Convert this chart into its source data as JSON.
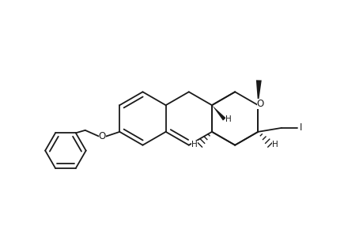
{
  "bg_color": "#ffffff",
  "line_color": "#1a1a1a",
  "line_width": 1.3,
  "figsize": [
    4.6,
    3.0
  ],
  "dpi": 100,
  "xlim": [
    0,
    460
  ],
  "ylim": [
    0,
    300
  ]
}
